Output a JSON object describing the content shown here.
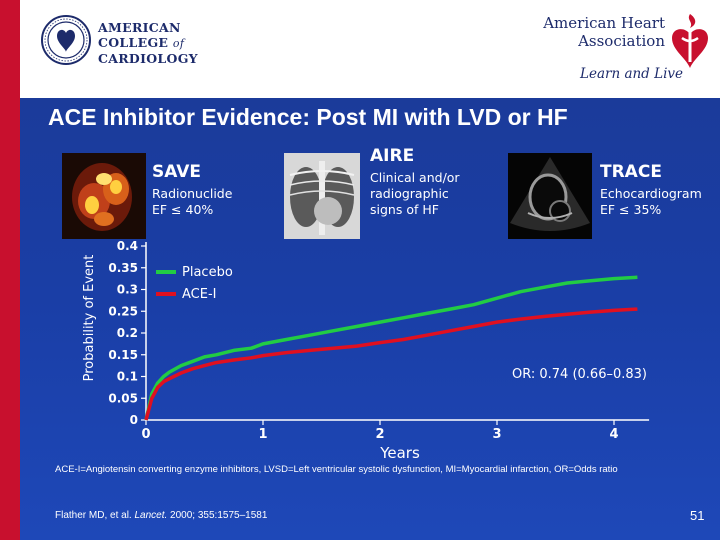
{
  "header": {
    "acc_logo_lines": [
      "AMERICAN",
      "COLLEGE",
      "of",
      "CARDIOLOGY"
    ],
    "aha_name_lines": [
      "American Heart",
      "Association"
    ],
    "aha_tagline": "Learn and Live"
  },
  "title": "ACE Inhibitor Evidence: Post MI with LVD or HF",
  "studies": [
    {
      "name": "SAVE",
      "desc_lines": [
        "Radionuclide",
        "EF ≤ 40%"
      ]
    },
    {
      "name": "AIRE",
      "desc_lines": [
        "Clinical and/or",
        "radiographic",
        "signs of HF"
      ]
    },
    {
      "name": "TRACE",
      "desc_lines": [
        "Echocardiogram",
        "EF ≤ 35%"
      ]
    }
  ],
  "colors": {
    "placebo": "#22cc44",
    "ace_i": "#e01020",
    "background": "#1b3fa6",
    "red_band": "#c8102e"
  },
  "chart_data": {
    "type": "line",
    "title": "",
    "xlabel": "Years",
    "ylabel": "Probability of Event",
    "xlim": [
      0,
      4.3
    ],
    "ylim": [
      0,
      0.4
    ],
    "x_ticks": [
      "0",
      "1",
      "2",
      "3",
      "4"
    ],
    "y_ticks": [
      {
        "value": 0,
        "label": "0"
      },
      {
        "value": 0.05,
        "label": "0.05"
      },
      {
        "value": 0.1,
        "label": "0.1"
      },
      {
        "value": 0.15,
        "label": "0.15"
      },
      {
        "value": 0.2,
        "label": "0.2"
      },
      {
        "value": 0.25,
        "label": "0.25"
      },
      {
        "value": 0.3,
        "label": "0.3"
      },
      {
        "value": 0.35,
        "label": "0.35"
      },
      {
        "value": 0.4,
        "label": "0.4"
      }
    ],
    "legend": "top-left",
    "annotation": "OR: 0.74 (0.66–0.83)",
    "series": [
      {
        "name": "Placebo",
        "x": [
          0,
          0.05,
          0.1,
          0.15,
          0.2,
          0.3,
          0.4,
          0.5,
          0.6,
          0.75,
          0.9,
          1.0,
          1.2,
          1.4,
          1.6,
          1.8,
          2.0,
          2.2,
          2.4,
          2.6,
          2.8,
          3.0,
          3.2,
          3.4,
          3.6,
          3.8,
          4.0,
          4.2
        ],
        "y": [
          0,
          0.06,
          0.085,
          0.1,
          0.11,
          0.125,
          0.135,
          0.145,
          0.15,
          0.16,
          0.165,
          0.175,
          0.185,
          0.195,
          0.205,
          0.215,
          0.225,
          0.235,
          0.245,
          0.255,
          0.265,
          0.28,
          0.295,
          0.305,
          0.315,
          0.32,
          0.325,
          0.328
        ]
      },
      {
        "name": "ACE-I",
        "x": [
          0,
          0.05,
          0.1,
          0.15,
          0.2,
          0.3,
          0.4,
          0.5,
          0.6,
          0.75,
          0.9,
          1.0,
          1.2,
          1.4,
          1.6,
          1.8,
          2.0,
          2.2,
          2.4,
          2.6,
          2.8,
          3.0,
          3.2,
          3.4,
          3.6,
          3.8,
          4.0,
          4.2
        ],
        "y": [
          0,
          0.05,
          0.075,
          0.088,
          0.095,
          0.108,
          0.118,
          0.125,
          0.132,
          0.138,
          0.143,
          0.148,
          0.155,
          0.16,
          0.165,
          0.17,
          0.178,
          0.185,
          0.195,
          0.205,
          0.215,
          0.225,
          0.232,
          0.238,
          0.243,
          0.248,
          0.252,
          0.255
        ]
      }
    ]
  },
  "footnote": "ACE-I=Angiotensin converting enzyme inhibitors, LVSD=Left ventricular systolic dysfunction, MI=Myocardial infarction, OR=Odds ratio",
  "citation": {
    "before": "Flather MD, et al. ",
    "journal": "Lancet.",
    "after": " 2000; 355:1575–1581"
  },
  "page_number": "51"
}
